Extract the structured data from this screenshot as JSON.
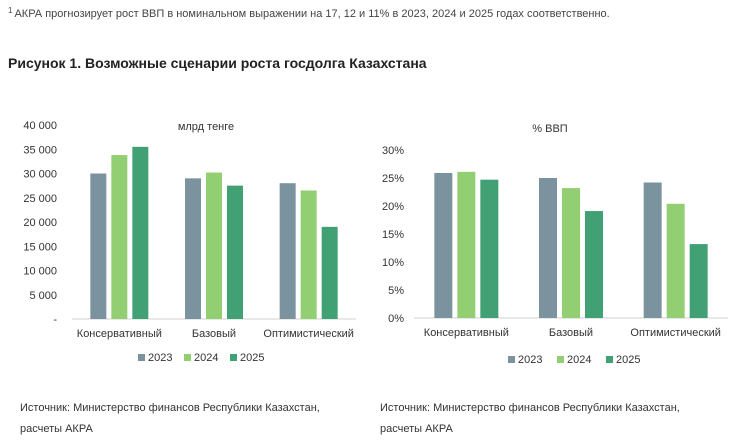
{
  "footnote": {
    "marker": "1",
    "text": "АКРА прогнозирует рост ВВП в номинальном выражении на 17, 12 и 11% в 2023, 2024 и 2025 годах соответственно."
  },
  "figure_title": "Рисунок 1. Возможные сценарии роста госдолга Казахстана",
  "colors": {
    "2023": "#7a939f",
    "2024": "#92cf72",
    "2025": "#42a075"
  },
  "chart_data": [
    {
      "type": "bar",
      "title": "млрд тенге",
      "categories": [
        "Консервативный",
        "Базовый",
        "Оптимистический"
      ],
      "series": [
        {
          "name": "2023",
          "values": [
            30000,
            29000,
            28000
          ]
        },
        {
          "name": "2024",
          "values": [
            33800,
            30200,
            26500
          ]
        },
        {
          "name": "2025",
          "values": [
            35500,
            27500,
            19000
          ]
        }
      ],
      "yticks": [
        "-",
        "5 000",
        "10 000",
        "15 000",
        "20 000",
        "25 000",
        "30 000",
        "35 000",
        "40 000"
      ],
      "ylim": [
        0,
        40000
      ],
      "legend": "bottom",
      "grid": false
    },
    {
      "type": "bar",
      "title": "% ВВП",
      "categories": [
        "Консервативный",
        "Базовый",
        "Оптимистический"
      ],
      "series": [
        {
          "name": "2023",
          "values": [
            25.9,
            25.0,
            24.2
          ]
        },
        {
          "name": "2024",
          "values": [
            26.1,
            23.2,
            20.4
          ]
        },
        {
          "name": "2025",
          "values": [
            24.7,
            19.1,
            13.2
          ]
        }
      ],
      "yticks": [
        "0%",
        "5%",
        "10%",
        "15%",
        "20%",
        "25%",
        "30%"
      ],
      "ylim": [
        0,
        30
      ],
      "legend": "bottom",
      "grid": false
    }
  ],
  "sources": [
    {
      "line1": "Источник: Министерство финансов Республики Казахстан,",
      "line2": "расчеты АКРА"
    },
    {
      "line1": "Источник: Министерство финансов Республики Казахстан,",
      "line2": "расчеты АКРА"
    }
  ]
}
